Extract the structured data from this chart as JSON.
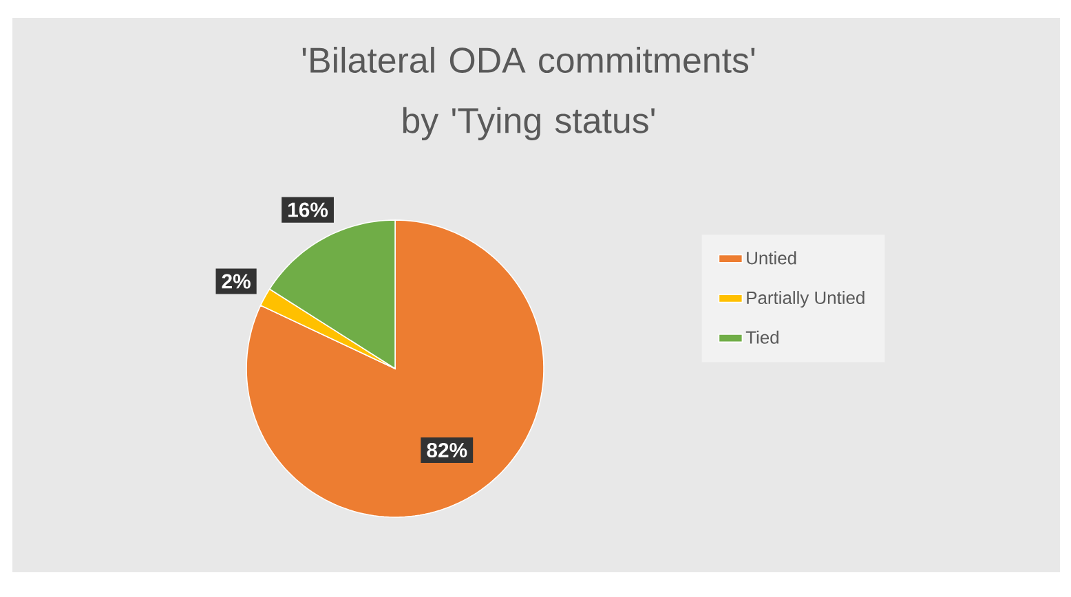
{
  "chart_data": {
    "type": "pie",
    "title": "'Bilateral ODA commitments' by 'Tying status'",
    "categories": [
      "Untied",
      "Partially Untied",
      "Tied"
    ],
    "values": [
      82,
      2,
      16
    ],
    "colors": [
      "#ed7d31",
      "#ffc000",
      "#70ad47"
    ],
    "value_labels": [
      "82%",
      "2%",
      "16%"
    ],
    "legend": "right"
  }
}
